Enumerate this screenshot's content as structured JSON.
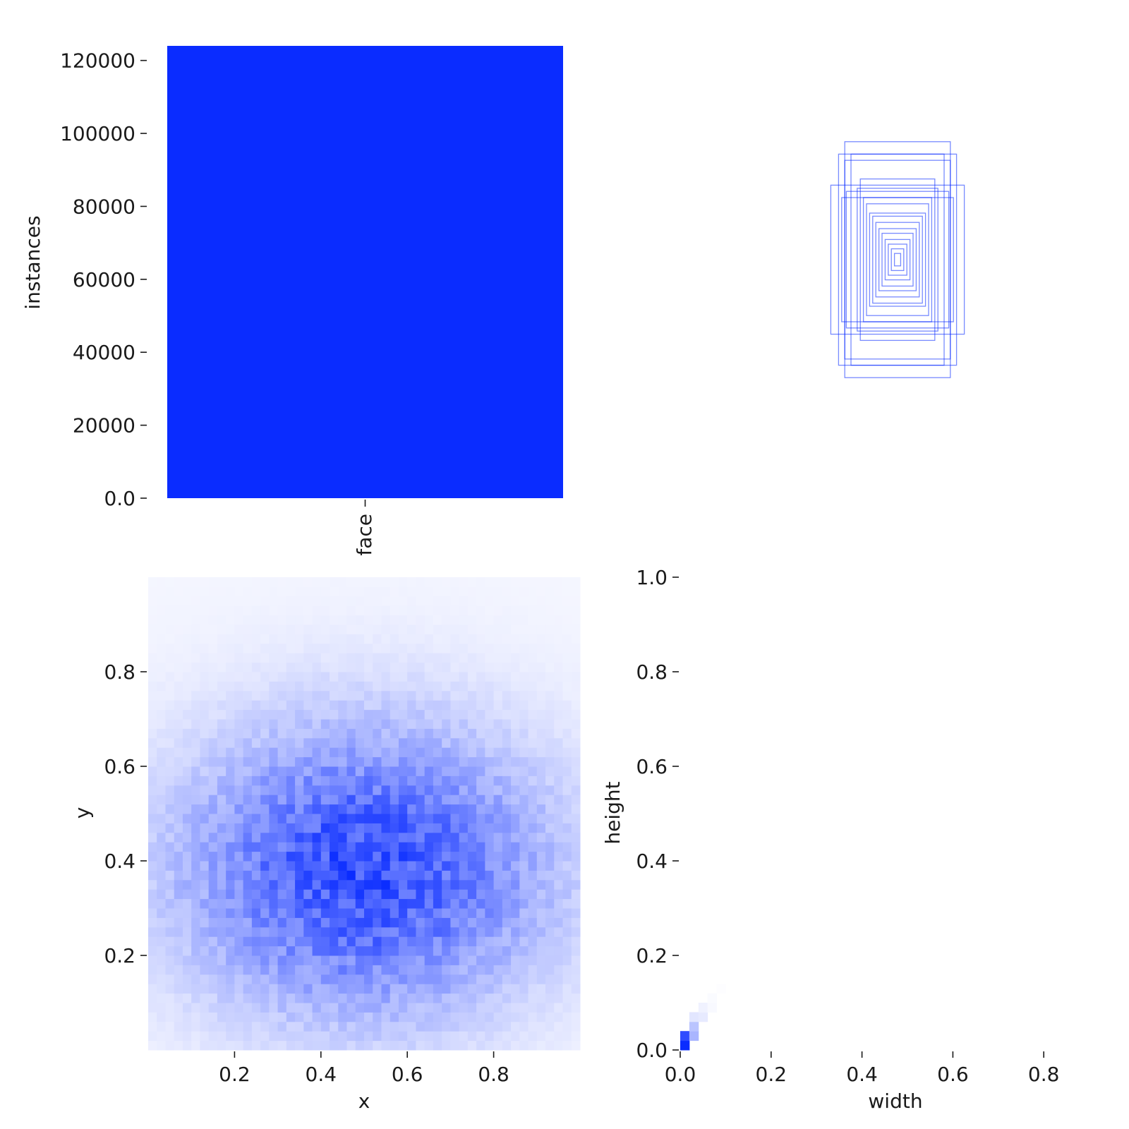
{
  "chart_data": [
    {
      "type": "bar",
      "categories": [
        "face"
      ],
      "values": [
        124000
      ],
      "ylabel": "instances",
      "ylim": [
        0,
        124000
      ],
      "yticks": [
        0,
        20000,
        40000,
        60000,
        80000,
        100000,
        120000
      ],
      "grid": false,
      "color": "#0a2cff"
    },
    {
      "type": "box-overlay",
      "boxes": [
        {
          "w": 0.34,
          "h": 0.76
        },
        {
          "w": 0.38,
          "h": 0.68
        },
        {
          "w": 0.43,
          "h": 0.48
        },
        {
          "w": 0.3,
          "h": 0.68
        },
        {
          "w": 0.34,
          "h": 0.64
        },
        {
          "w": 0.33,
          "h": 0.44
        },
        {
          "w": 0.36,
          "h": 0.4
        },
        {
          "w": 0.24,
          "h": 0.52
        },
        {
          "w": 0.26,
          "h": 0.46
        },
        {
          "w": 0.22,
          "h": 0.4
        },
        {
          "w": 0.2,
          "h": 0.36
        },
        {
          "w": 0.18,
          "h": 0.3
        },
        {
          "w": 0.16,
          "h": 0.28
        },
        {
          "w": 0.14,
          "h": 0.24
        },
        {
          "w": 0.12,
          "h": 0.2
        },
        {
          "w": 0.1,
          "h": 0.17
        },
        {
          "w": 0.08,
          "h": 0.13
        },
        {
          "w": 0.06,
          "h": 0.1
        },
        {
          "w": 0.04,
          "h": 0.07
        },
        {
          "w": 0.02,
          "h": 0.04
        }
      ],
      "color": "#0a2cff"
    },
    {
      "type": "heatmap",
      "xlabel": "x",
      "ylabel": "y",
      "xlim": [
        0,
        1
      ],
      "ylim": [
        0,
        1
      ],
      "xticks": [
        0.2,
        0.4,
        0.6,
        0.8
      ],
      "yticks": [
        0.2,
        0.4,
        0.6,
        0.8
      ],
      "bins": 50,
      "density_peak": {
        "x": 0.5,
        "y": 0.38
      },
      "color": "#0a2cff"
    },
    {
      "type": "heatmap",
      "xlabel": "width",
      "ylabel": "height",
      "xlim": [
        0,
        1
      ],
      "ylim": [
        0,
        1
      ],
      "xticks": [
        0.0,
        0.2,
        0.4,
        0.6,
        0.8
      ],
      "yticks": [
        0.0,
        0.2,
        0.4,
        0.6,
        0.8,
        1.0
      ],
      "cells": [
        {
          "x": 0.0,
          "y": 0.0,
          "v": 1.0
        },
        {
          "x": 0.0,
          "y": 0.02,
          "v": 0.85
        },
        {
          "x": 0.02,
          "y": 0.02,
          "v": 0.35
        },
        {
          "x": 0.02,
          "y": 0.04,
          "v": 0.28
        },
        {
          "x": 0.02,
          "y": 0.06,
          "v": 0.12
        },
        {
          "x": 0.04,
          "y": 0.06,
          "v": 0.1
        },
        {
          "x": 0.04,
          "y": 0.08,
          "v": 0.06
        },
        {
          "x": 0.06,
          "y": 0.08,
          "v": 0.03
        },
        {
          "x": 0.06,
          "y": 0.1,
          "v": 0.02
        },
        {
          "x": 0.08,
          "y": 0.12,
          "v": 0.01
        }
      ],
      "color": "#0a2cff"
    }
  ]
}
